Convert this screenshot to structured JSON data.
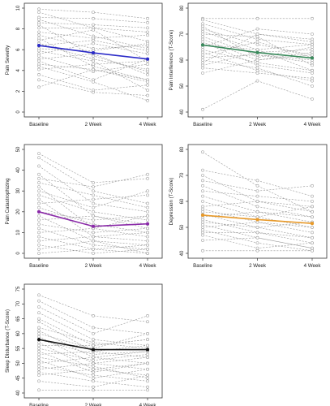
{
  "chart_data": [
    {
      "type": "line",
      "categories": [
        "Baseline",
        "2 Week",
        "4 Week"
      ],
      "ylabel": "Pain Severity",
      "ylim": [
        0,
        10
      ],
      "yticks": [
        0,
        2,
        4,
        6,
        8,
        10
      ],
      "mean": {
        "values": [
          6.4,
          5.7,
          5.1
        ],
        "color": "#2b2bc8"
      },
      "individual_color": "#9a9a9a",
      "individual": [
        [
          9.9,
          9.6,
          9.0
        ],
        [
          9.6,
          8.1,
          7.7
        ],
        [
          9.1,
          9.0,
          8.6
        ],
        [
          8.9,
          7.3,
          6.1
        ],
        [
          8.6,
          8.4,
          8.1
        ],
        [
          8.4,
          5.4,
          3.9
        ],
        [
          8.1,
          8.1,
          6.8
        ],
        [
          7.7,
          7.1,
          7.4
        ],
        [
          7.4,
          6.1,
          6.4
        ],
        [
          7.1,
          4.4,
          3.1
        ],
        [
          6.9,
          7.9,
          4.9
        ],
        [
          6.6,
          5.1,
          4.1
        ],
        [
          6.4,
          6.9,
          5.9
        ],
        [
          6.1,
          5.9,
          6.6
        ],
        [
          5.9,
          4.9,
          2.1
        ],
        [
          5.6,
          6.6,
          5.6
        ],
        [
          5.4,
          3.9,
          4.6
        ],
        [
          5.1,
          5.6,
          3.6
        ],
        [
          4.9,
          3.1,
          5.1
        ],
        [
          4.6,
          4.1,
          3.1
        ],
        [
          4.4,
          2.9,
          1.1
        ],
        [
          4.1,
          4.6,
          4.9
        ],
        [
          3.6,
          2.1,
          2.6
        ],
        [
          3.1,
          1.9,
          1.6
        ],
        [
          2.4,
          4.1,
          2.9
        ]
      ]
    },
    {
      "type": "line",
      "categories": [
        "Baseline",
        "2 Week",
        "4 Week"
      ],
      "ylabel": "Pain Interference (T-Score)",
      "ylim": [
        40,
        80
      ],
      "yticks": [
        40,
        50,
        60,
        70,
        80
      ],
      "mean": {
        "values": [
          65.8,
          62.9,
          60.8
        ],
        "color": "#3a8a5c"
      },
      "individual_color": "#9a9a9a",
      "individual": [
        [
          76,
          76,
          76
        ],
        [
          75.5,
          70,
          68
        ],
        [
          74,
          68,
          66
        ],
        [
          73,
          61,
          65
        ],
        [
          72,
          66,
          62
        ],
        [
          71,
          64,
          56
        ],
        [
          70,
          69,
          58
        ],
        [
          69,
          62,
          60
        ],
        [
          68,
          60,
          63
        ],
        [
          67,
          58,
          55
        ],
        [
          66,
          64,
          66
        ],
        [
          65,
          72,
          70
        ],
        [
          64,
          59,
          56
        ],
        [
          63,
          56,
          52
        ],
        [
          62,
          67,
          61
        ],
        [
          61,
          62,
          59
        ],
        [
          60,
          57,
          50
        ],
        [
          59,
          70,
          67
        ],
        [
          58,
          63,
          64
        ],
        [
          57,
          55,
          53
        ],
        [
          55,
          60,
          62
        ],
        [
          41,
          52,
          45
        ]
      ]
    },
    {
      "type": "line",
      "categories": [
        "Baseline",
        "2 Week",
        "4 Week"
      ],
      "ylabel": "Pain Catastrophizing",
      "ylim": [
        0,
        50
      ],
      "yticks": [
        0,
        10,
        20,
        30,
        40,
        50
      ],
      "mean": {
        "values": [
          20.0,
          13.0,
          14.2
        ],
        "color": "#8a2aa8"
      },
      "individual_color": "#9a9a9a",
      "individual": [
        [
          48,
          34,
          36
        ],
        [
          46,
          30,
          24
        ],
        [
          42,
          24,
          20
        ],
        [
          38,
          18,
          12
        ],
        [
          36,
          32,
          38
        ],
        [
          34,
          28,
          22
        ],
        [
          32,
          12,
          8
        ],
        [
          30,
          22,
          30
        ],
        [
          28,
          20,
          16
        ],
        [
          26,
          8,
          6
        ],
        [
          24,
          26,
          28
        ],
        [
          22,
          14,
          10
        ],
        [
          20,
          16,
          18
        ],
        [
          18,
          6,
          4
        ],
        [
          16,
          18,
          14
        ],
        [
          14,
          10,
          12
        ],
        [
          12,
          4,
          2
        ],
        [
          10,
          12,
          18
        ],
        [
          8,
          2,
          0
        ],
        [
          6,
          8,
          10
        ],
        [
          4,
          0,
          2
        ],
        [
          2,
          6,
          0
        ],
        [
          0,
          2,
          4
        ]
      ]
    },
    {
      "type": "line",
      "categories": [
        "Baseline",
        "2 Week",
        "4 Week"
      ],
      "ylabel": "Depression (T-Score)",
      "ylim": [
        40,
        80
      ],
      "yticks": [
        40,
        50,
        60,
        70,
        80
      ],
      "mean": {
        "values": [
          54.7,
          53.0,
          51.5
        ],
        "color": "#e89a2a"
      },
      "individual_color": "#9a9a9a",
      "individual": [
        [
          79,
          66,
          56
        ],
        [
          72,
          68,
          62
        ],
        [
          70,
          60,
          58
        ],
        [
          68,
          64,
          66
        ],
        [
          66,
          58,
          54
        ],
        [
          64,
          62,
          60
        ],
        [
          62,
          56,
          52
        ],
        [
          60,
          54,
          50
        ],
        [
          58,
          60,
          56
        ],
        [
          57,
          52,
          48
        ],
        [
          56,
          54,
          58
        ],
        [
          55,
          50,
          46
        ],
        [
          54,
          56,
          54
        ],
        [
          53,
          48,
          44
        ],
        [
          52,
          50,
          52
        ],
        [
          51,
          46,
          42
        ],
        [
          50,
          52,
          50
        ],
        [
          49,
          44,
          41
        ],
        [
          48,
          48,
          46
        ],
        [
          47,
          42,
          44
        ],
        [
          45,
          46,
          42
        ],
        [
          41,
          41,
          41
        ]
      ]
    },
    {
      "type": "line",
      "categories": [
        "Baseline",
        "2 Week",
        "4 Week"
      ],
      "ylabel": "Sleep Disturbance (T-Score)",
      "ylim": [
        40,
        75
      ],
      "yticks": [
        40,
        45,
        50,
        55,
        60,
        65,
        70,
        75
      ],
      "mean": {
        "values": [
          58.0,
          54.6,
          54.6
        ],
        "color": "#111111"
      },
      "individual_color": "#9a9a9a",
      "individual": [
        [
          73,
          66,
          64
        ],
        [
          71,
          62,
          60
        ],
        [
          69,
          60,
          66
        ],
        [
          67,
          58,
          56
        ],
        [
          65,
          56,
          58
        ],
        [
          64,
          54,
          52
        ],
        [
          62,
          57,
          55
        ],
        [
          61,
          52,
          50
        ],
        [
          60,
          55,
          60
        ],
        [
          59,
          50,
          48
        ],
        [
          58,
          53,
          54
        ],
        [
          57,
          48,
          46
        ],
        [
          56,
          56,
          58
        ],
        [
          55,
          51,
          53
        ],
        [
          54,
          47,
          50
        ],
        [
          53,
          54,
          56
        ],
        [
          52,
          49,
          45
        ],
        [
          51,
          45,
          48
        ],
        [
          50,
          52,
          54
        ],
        [
          49,
          46,
          44
        ],
        [
          48,
          50,
          52
        ],
        [
          47,
          44,
          42
        ],
        [
          46,
          48,
          50
        ],
        [
          44,
          42,
          46
        ],
        [
          41,
          41,
          41
        ]
      ]
    }
  ]
}
